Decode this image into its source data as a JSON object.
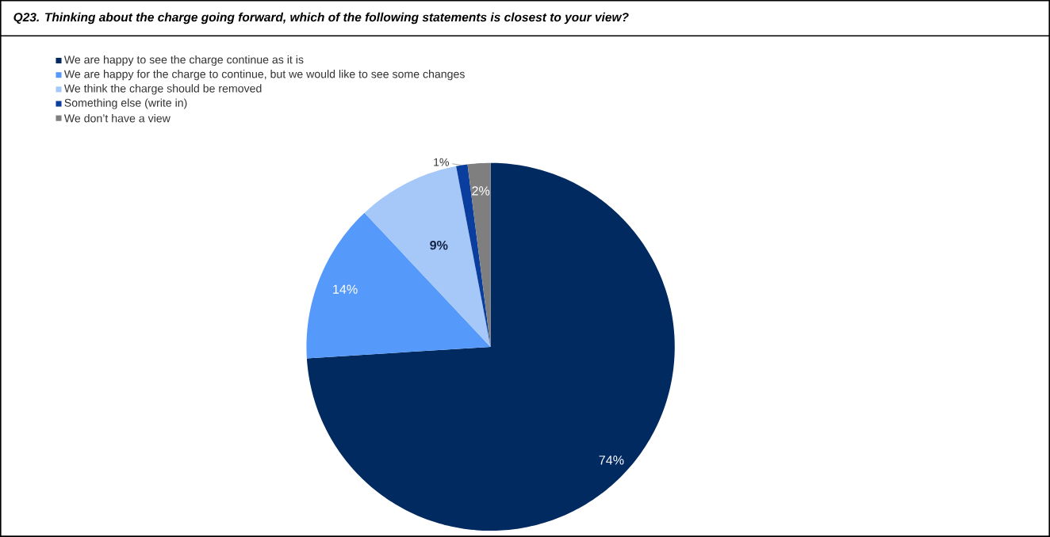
{
  "chart_data": {
    "type": "pie",
    "title": "Q23. Thinking about the charge going forward, which of the following statements is closest to your view?",
    "categories": [
      "We are happy to see the charge continue as it is",
      "We are happy for the charge to continue, but we would like to see some changes",
      "We think the charge should be removed",
      "Something else (write in)",
      "We don’t have a view"
    ],
    "values": [
      74,
      14,
      9,
      1,
      2
    ],
    "value_labels": [
      "74%",
      "14%",
      "9%",
      "1%",
      "2%"
    ],
    "colors": [
      "#002a60",
      "#559afa",
      "#a6c8f8",
      "#0a3e9e",
      "#7f7f7f"
    ],
    "legend": "top left"
  }
}
